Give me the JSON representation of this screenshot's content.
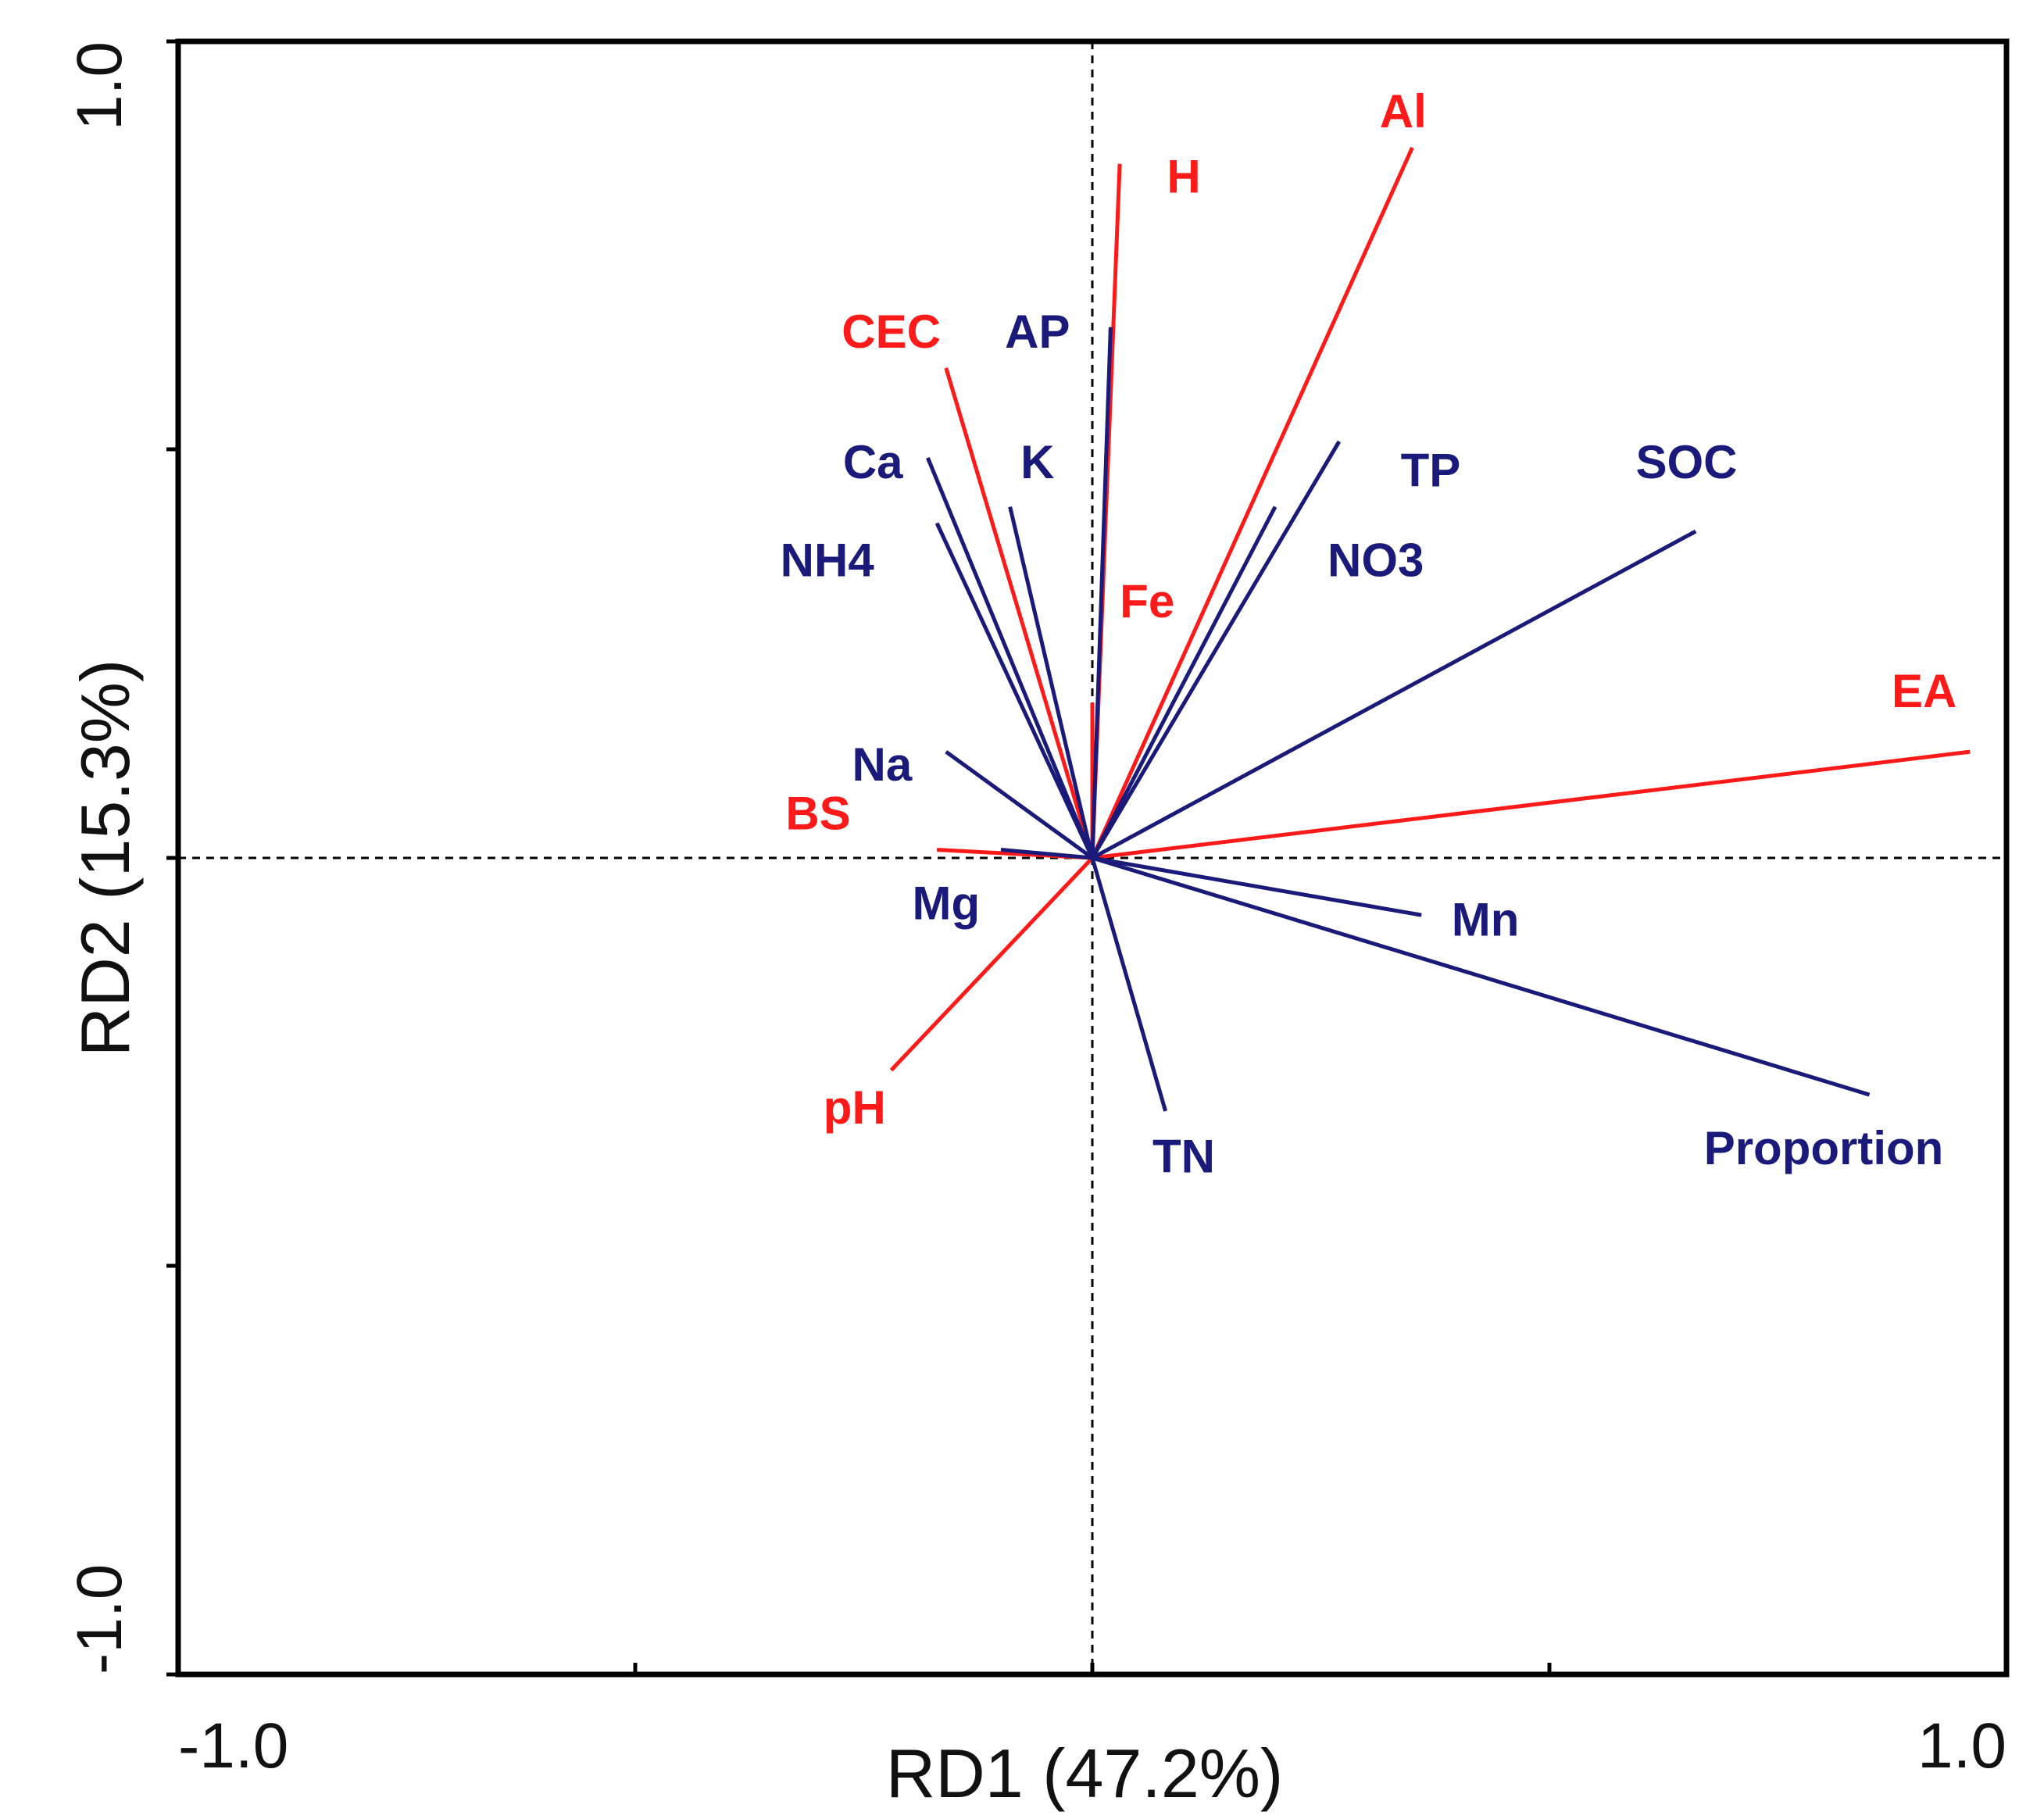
{
  "chart_data": {
    "type": "scatter",
    "xlabel": "RD1 (47.2%)",
    "ylabel": "RD2 (15.3%)",
    "xlim": [
      -1.0,
      1.0
    ],
    "ylim": [
      -1.0,
      1.0
    ],
    "x_tick_labels": [
      "-1.0",
      "1.0"
    ],
    "y_tick_labels": [
      "-1.0",
      "1.0"
    ],
    "grid": false,
    "colors": {
      "red": "#ff1a1a",
      "blue": "#1a1a7a",
      "axis": "#000000"
    },
    "vectors": [
      {
        "name": "H",
        "x": 0.03,
        "y": 0.85,
        "color": "red",
        "label_x": 0.1,
        "label_y": 0.83
      },
      {
        "name": "Al",
        "x": 0.35,
        "y": 0.87,
        "color": "red",
        "label_x": 0.34,
        "label_y": 0.91
      },
      {
        "name": "CEC",
        "x": -0.16,
        "y": 0.6,
        "color": "red",
        "label_x": -0.22,
        "label_y": 0.64
      },
      {
        "name": "Fe",
        "x": 0.0,
        "y": 0.19,
        "color": "red",
        "label_x": 0.06,
        "label_y": 0.31
      },
      {
        "name": "EA",
        "x": 0.96,
        "y": 0.13,
        "color": "red",
        "label_x": 0.91,
        "label_y": 0.2
      },
      {
        "name": "BS",
        "x": -0.17,
        "y": 0.01,
        "color": "red",
        "label_x": -0.3,
        "label_y": 0.05
      },
      {
        "name": "pH",
        "x": -0.22,
        "y": -0.26,
        "color": "red",
        "label_x": -0.26,
        "label_y": -0.31
      },
      {
        "name": "AP",
        "x": 0.02,
        "y": 0.65,
        "color": "blue",
        "label_x": -0.06,
        "label_y": 0.64
      },
      {
        "name": "Ca",
        "x": -0.18,
        "y": 0.49,
        "color": "blue",
        "label_x": -0.24,
        "label_y": 0.48
      },
      {
        "name": "K",
        "x": -0.09,
        "y": 0.43,
        "color": "blue",
        "label_x": -0.06,
        "label_y": 0.48
      },
      {
        "name": "NH4",
        "x": -0.17,
        "y": 0.41,
        "color": "blue",
        "label_x": -0.29,
        "label_y": 0.36
      },
      {
        "name": "TP",
        "x": 0.27,
        "y": 0.51,
        "color": "blue",
        "label_x": 0.37,
        "label_y": 0.47
      },
      {
        "name": "NO3",
        "x": 0.2,
        "y": 0.43,
        "color": "blue",
        "label_x": 0.31,
        "label_y": 0.36
      },
      {
        "name": "SOC",
        "x": 0.66,
        "y": 0.4,
        "color": "blue",
        "label_x": 0.65,
        "label_y": 0.48
      },
      {
        "name": "Na",
        "x": -0.16,
        "y": 0.13,
        "color": "blue",
        "label_x": -0.23,
        "label_y": 0.11
      },
      {
        "name": "Mg",
        "x": -0.1,
        "y": 0.01,
        "color": "blue",
        "label_x": -0.16,
        "label_y": -0.06
      },
      {
        "name": "Mn",
        "x": 0.36,
        "y": -0.07,
        "color": "blue",
        "label_x": 0.43,
        "label_y": -0.08
      },
      {
        "name": "TN",
        "x": 0.08,
        "y": -0.31,
        "color": "blue",
        "label_x": 0.1,
        "label_y": -0.37
      },
      {
        "name": "Proportion",
        "x": 0.85,
        "y": -0.29,
        "color": "blue",
        "label_x": 0.8,
        "label_y": -0.36
      }
    ]
  }
}
